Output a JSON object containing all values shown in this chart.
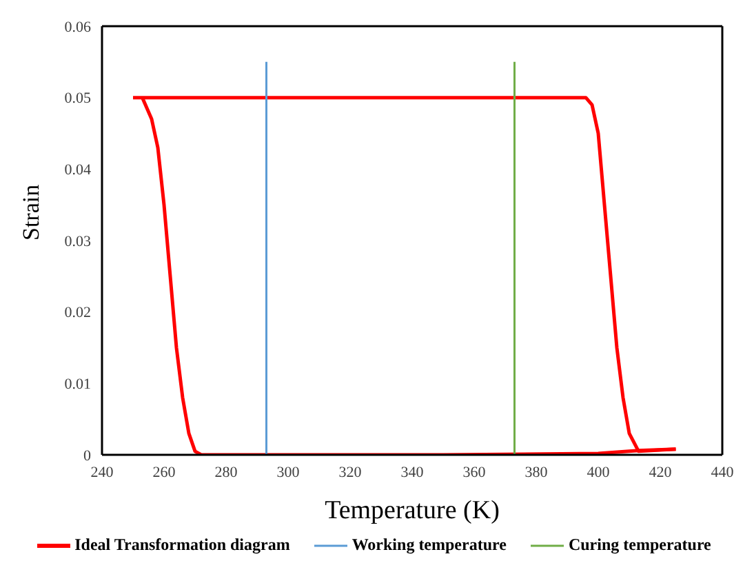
{
  "chart_data": {
    "type": "line",
    "xlabel": "Temperature (K)",
    "ylabel": "Strain",
    "xlim": [
      240,
      440
    ],
    "xticks": [
      240,
      260,
      280,
      300,
      320,
      340,
      360,
      380,
      400,
      420,
      440
    ],
    "ylim": [
      0,
      0.06
    ],
    "yticks": [
      0,
      0.01,
      0.02,
      0.03,
      0.04,
      0.05,
      0.06
    ],
    "grid": false,
    "legend": "bottom",
    "marker": "none",
    "line_style": "solid",
    "series": [
      {
        "name": "Ideal Transformation diagram",
        "color": "#ff0000",
        "x": [
          250,
          270,
          300,
          350,
          396,
          398,
          400,
          402,
          404,
          406,
          408,
          410,
          413,
          425
        ],
        "values": [
          0.05,
          0.05,
          0.05,
          0.05,
          0.05,
          0.049,
          0.045,
          0.035,
          0.025,
          0.015,
          0.008,
          0.003,
          0.0005,
          0.0008
        ]
      },
      {
        "color": "#ff0000",
        "x": [
          253,
          256,
          258,
          260,
          262,
          264,
          266,
          268,
          270,
          272,
          300,
          350,
          400,
          413,
          425
        ],
        "values": [
          0.05,
          0.047,
          0.043,
          0.035,
          0.025,
          0.015,
          0.008,
          0.003,
          0.0005,
          0,
          0,
          0,
          0.0002,
          0.0006,
          0.0008
        ]
      },
      {
        "name": "Working temperature",
        "color": "#5b9bd5",
        "x": [
          293,
          293
        ],
        "values": [
          0,
          0.055
        ]
      },
      {
        "name": "Curing temperature",
        "color": "#70ad47",
        "x": [
          373,
          373
        ],
        "values": [
          0,
          0.055
        ]
      }
    ]
  }
}
